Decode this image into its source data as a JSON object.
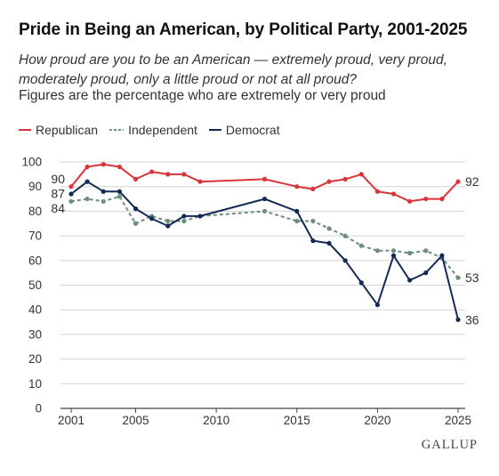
{
  "header": {
    "title": "Pride in Being an American, by Political Party, 2001-2025",
    "subtitle": "How proud are you to be an American — extremely proud, very proud, moderately proud, only a little proud or not at all proud?",
    "note": "Figures are the percentage who are extremely or very proud"
  },
  "logo": "GALLUP",
  "colors": {
    "republican": "#d9343a",
    "independent": "#6b8f7b",
    "democrat": "#132a57",
    "grid": "#d3d3d3",
    "axis": "#444444"
  },
  "chart_data": {
    "type": "line",
    "title": "Pride in Being an American, by Political Party, 2001-2025",
    "xlabel": "",
    "ylabel": "",
    "xlim": [
      2001,
      2025
    ],
    "ylim": [
      0,
      100
    ],
    "x_ticks": [
      2001,
      2005,
      2010,
      2015,
      2020,
      2025
    ],
    "y_ticks": [
      0,
      10,
      20,
      30,
      40,
      50,
      60,
      70,
      80,
      90,
      100
    ],
    "grid": true,
    "legend_position": "top-left",
    "series": [
      {
        "name": "Republican",
        "color": "#d9343a",
        "dash": "solid",
        "points": [
          [
            2001,
            90
          ],
          [
            2002,
            98
          ],
          [
            2003,
            99
          ],
          [
            2004,
            98
          ],
          [
            2005,
            93
          ],
          [
            2006,
            96
          ],
          [
            2007,
            95
          ],
          [
            2008,
            95
          ],
          [
            2009,
            92
          ],
          [
            2013,
            93
          ],
          [
            2015,
            90
          ],
          [
            2016,
            89
          ],
          [
            2017,
            92
          ],
          [
            2018,
            93
          ],
          [
            2019,
            95
          ],
          [
            2020,
            88
          ],
          [
            2021,
            87
          ],
          [
            2022,
            84
          ],
          [
            2023,
            85
          ],
          [
            2024,
            85
          ],
          [
            2025,
            92
          ]
        ],
        "start_label": "90",
        "end_label": "92"
      },
      {
        "name": "Independent",
        "color": "#6b8f7b",
        "dash": "dashed",
        "points": [
          [
            2001,
            84
          ],
          [
            2002,
            85
          ],
          [
            2003,
            84
          ],
          [
            2004,
            86
          ],
          [
            2005,
            75
          ],
          [
            2006,
            78
          ],
          [
            2007,
            76
          ],
          [
            2008,
            76
          ],
          [
            2009,
            78
          ],
          [
            2013,
            80
          ],
          [
            2015,
            76
          ],
          [
            2016,
            76
          ],
          [
            2017,
            73
          ],
          [
            2018,
            70
          ],
          [
            2019,
            66
          ],
          [
            2020,
            64
          ],
          [
            2021,
            64
          ],
          [
            2022,
            63
          ],
          [
            2023,
            64
          ],
          [
            2024,
            61
          ],
          [
            2025,
            53
          ]
        ],
        "start_label": "84",
        "end_label": "53"
      },
      {
        "name": "Democrat",
        "color": "#132a57",
        "dash": "solid",
        "points": [
          [
            2001,
            87
          ],
          [
            2002,
            92
          ],
          [
            2003,
            88
          ],
          [
            2004,
            88
          ],
          [
            2005,
            81
          ],
          [
            2006,
            77
          ],
          [
            2007,
            74
          ],
          [
            2008,
            78
          ],
          [
            2009,
            78
          ],
          [
            2013,
            85
          ],
          [
            2015,
            80
          ],
          [
            2016,
            68
          ],
          [
            2017,
            67
          ],
          [
            2018,
            60
          ],
          [
            2019,
            51
          ],
          [
            2020,
            42
          ],
          [
            2021,
            62
          ],
          [
            2022,
            52
          ],
          [
            2023,
            55
          ],
          [
            2024,
            62
          ],
          [
            2025,
            36
          ]
        ],
        "start_label": "87",
        "end_label": "36"
      }
    ]
  }
}
